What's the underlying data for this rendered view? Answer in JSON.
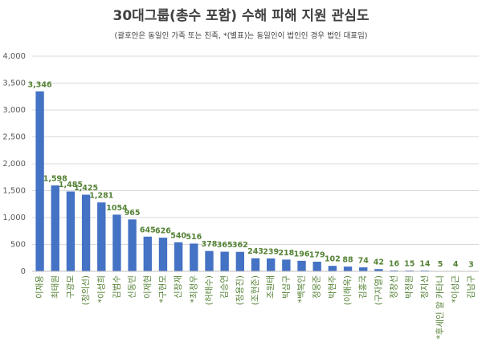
{
  "chart_data": {
    "type": "bar",
    "title": "30대그룹(총수 포함) 수해 피해 지원 관심도",
    "subtitle": "(괄호안은 동일인 가족 또는 친족, *(별표)는 동일인이 법인인 경우 법인 대표임)",
    "categories": [
      "이재용",
      "최태원",
      "구광모",
      "(정의선)",
      "*이성희",
      "김범수",
      "신동빈",
      "이재현",
      "*구현모",
      "신창재",
      "*최정우",
      "(허태수)",
      "김승연",
      "(정용진)",
      "(조현준)",
      "조원태",
      "박삼구",
      "*백복인",
      "정몽준",
      "박현주",
      "(이해욱)",
      "김홍국",
      "(구자열)",
      "정창선",
      "박정원",
      "정지선",
      "*후세인 알 카타니",
      "*이성근",
      "김남구"
    ],
    "values": [
      3346,
      1598,
      1485,
      1425,
      1281,
      1054,
      965,
      645,
      626,
      540,
      516,
      378,
      365,
      362,
      243,
      239,
      218,
      196,
      179,
      102,
      88,
      74,
      42,
      16,
      15,
      14,
      5,
      4,
      3
    ],
    "value_labels": [
      "3,346",
      "1,598",
      "1,485",
      "1,425",
      "1,281",
      "1054",
      "965",
      "645",
      "626",
      "540",
      "516",
      "378",
      "365",
      "362",
      "243",
      "239",
      "218",
      "196",
      "179",
      "102",
      "88",
      "74",
      "42",
      "16",
      "15",
      "14",
      "5",
      "4",
      "3"
    ],
    "color": "#4472c4",
    "label_color": "#548235",
    "ylim": [
      0,
      4000
    ],
    "yticks": [
      0,
      {
        "value": 500,
        "label": "500"
      },
      {
        "value": 1000,
        "label": "1,000"
      },
      {
        "value": 1500,
        "label": "1,500"
      },
      {
        "value": 2000,
        "label": "2,000"
      },
      {
        "value": 2500,
        "label": "2,500"
      },
      {
        "value": 3000,
        "label": "3,000"
      },
      {
        "value": 3500,
        "label": "3,500"
      },
      {
        "value": 4000,
        "label": "4,000"
      }
    ],
    "grid": true
  }
}
